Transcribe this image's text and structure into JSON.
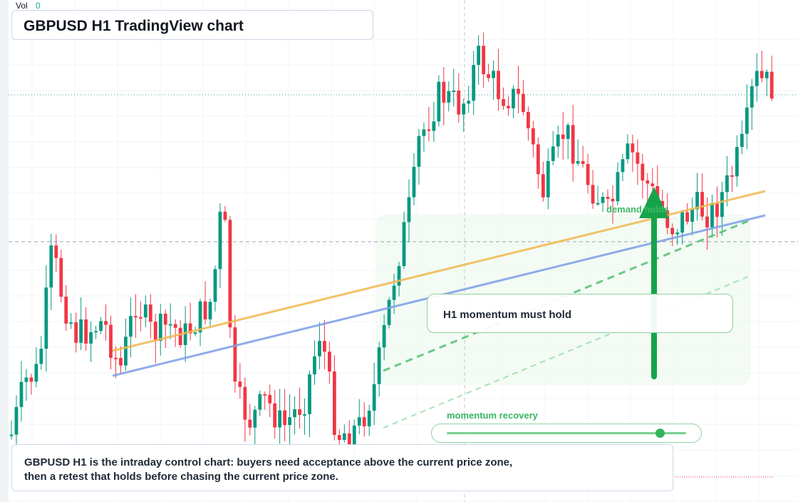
{
  "header": {
    "vol_label": "Vol",
    "vol_value": "0",
    "title": "GBPUSD H1 TradingView chart"
  },
  "annotations": {
    "demand_label": "demand holds",
    "momentum_note": "H1 momentum must hold",
    "momentum_recovery_label": "momentum recovery",
    "momentum_recovery_level": 0.89,
    "summary": "GBPUSD H1 is the intraday control chart: buyers need acceptance above the current price zone, then a retest that holds before chasing the current price zone."
  },
  "colors": {
    "up": "#089981",
    "down": "#f23645",
    "trend_orange": "#f2b84e",
    "trend_blue": "#7d9ee8",
    "accent_green": "#16a34a",
    "demand_zone": "#e8f7ea"
  },
  "chart_data": {
    "type": "candlestick",
    "symbol": "GBPUSD",
    "timeframe": "H1",
    "candle_count": 156,
    "series": "bullish impulse from lows, consolidation, selloff, strong rally to highs, pullback and recovery",
    "overlays": [
      "orange rising trendline",
      "blue rising trendline",
      "green dashed rising support lines",
      "green upward arrow",
      "demand zone"
    ]
  }
}
